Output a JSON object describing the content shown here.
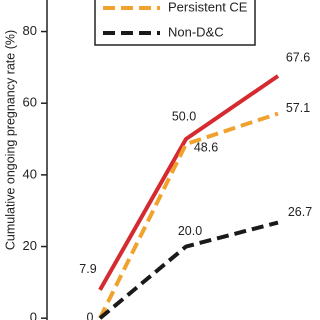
{
  "chart_data": {
    "type": "line",
    "ylabel": "Cumulative ongoing pregnancy rate (%)",
    "categories": [
      null,
      null,
      null
    ],
    "ylim": [
      -0.5,
      88.8
    ],
    "yticks": [
      0,
      20,
      40,
      60,
      80
    ],
    "legend": "top",
    "series": [
      {
        "color": "#d42a30",
        "style": "solid",
        "values": [
          7.9,
          50.0,
          67.6
        ],
        "value_labels": [
          "7.9",
          "50.0",
          "67.6"
        ]
      },
      {
        "name": "Persistent CE",
        "color": "#f0a22e",
        "style": "dashed",
        "values": [
          0,
          48.6,
          57.1
        ],
        "value_labels": [
          "0",
          "48.6",
          "57.1"
        ]
      },
      {
        "name": "Non-D&C",
        "color": "#1a1a1a",
        "style": "dashed",
        "values": [
          0,
          20.0,
          26.7
        ],
        "value_labels": [
          null,
          "20.0",
          "26.7"
        ]
      }
    ]
  }
}
